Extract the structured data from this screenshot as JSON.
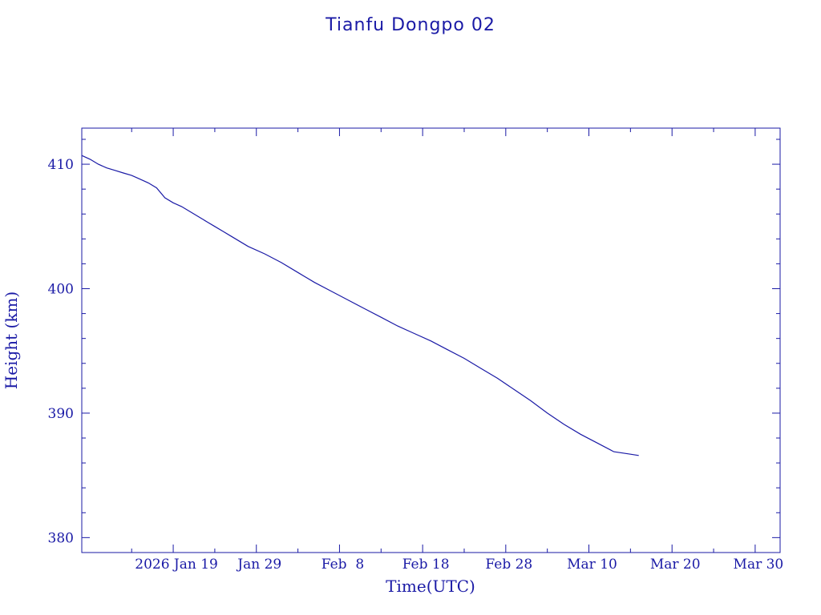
{
  "chart_data": {
    "type": "line",
    "title": "Tianfu Dongpo 02",
    "xlabel": "Time(UTC)",
    "ylabel": "Height (km)",
    "xlim": [
      "2026-01-08",
      "2026-04-02"
    ],
    "ylim": [
      378.8,
      412.9
    ],
    "x_ticks": [
      {
        "date": "2026-01-19",
        "label": "2026 Jan 19"
      },
      {
        "date": "2026-01-29",
        "label": "Jan 29"
      },
      {
        "date": "2026-02-08",
        "label": "Feb  8"
      },
      {
        "date": "2026-02-18",
        "label": "Feb 18"
      },
      {
        "date": "2026-02-28",
        "label": "Feb 28"
      },
      {
        "date": "2026-03-10",
        "label": "Mar 10"
      },
      {
        "date": "2026-03-20",
        "label": "Mar 20"
      },
      {
        "date": "2026-03-30",
        "label": "Mar 30"
      }
    ],
    "y_ticks": [
      {
        "value": 380,
        "label": "380"
      },
      {
        "value": 390,
        "label": "390"
      },
      {
        "value": 400,
        "label": "400"
      },
      {
        "value": 410,
        "label": "410"
      }
    ],
    "grid": false,
    "line_color": "#1a1aa6",
    "series": [
      {
        "x": [
          "2026-01-08",
          "2026-01-09",
          "2026-01-10",
          "2026-01-11",
          "2026-01-12",
          "2026-01-13",
          "2026-01-14",
          "2026-01-15",
          "2026-01-16",
          "2026-01-17",
          "2026-01-18",
          "2026-01-19",
          "2026-01-20",
          "2026-01-21",
          "2026-01-22",
          "2026-01-23",
          "2026-01-24",
          "2026-01-25",
          "2026-01-26",
          "2026-01-28",
          "2026-01-30",
          "2026-02-01",
          "2026-02-03",
          "2026-02-05",
          "2026-02-07",
          "2026-02-09",
          "2026-02-11",
          "2026-02-13",
          "2026-02-15",
          "2026-02-17",
          "2026-02-19",
          "2026-02-21",
          "2026-02-23",
          "2026-02-25",
          "2026-02-27",
          "2026-03-01",
          "2026-03-03",
          "2026-03-05",
          "2026-03-07",
          "2026-03-09",
          "2026-03-11",
          "2026-03-13",
          "2026-03-15",
          "2026-03-16"
        ],
        "y": [
          410.7,
          410.4,
          410.0,
          409.7,
          409.5,
          409.3,
          409.1,
          408.8,
          408.5,
          408.1,
          407.3,
          406.9,
          406.6,
          406.2,
          405.8,
          405.4,
          405.0,
          404.6,
          404.2,
          403.4,
          402.8,
          402.1,
          401.3,
          400.5,
          399.8,
          399.1,
          398.4,
          397.7,
          397.0,
          396.4,
          395.8,
          395.1,
          394.4,
          393.6,
          392.8,
          391.9,
          391.0,
          390.0,
          389.1,
          388.3,
          387.6,
          386.9,
          386.7,
          386.6
        ]
      }
    ]
  }
}
